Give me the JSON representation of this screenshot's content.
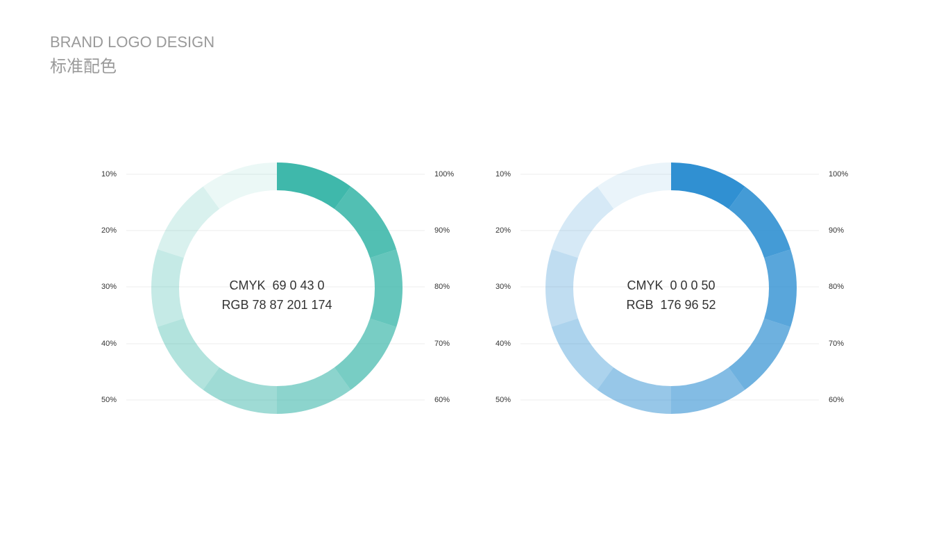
{
  "header": {
    "title": "BRAND LOGO DESIGN",
    "subtitle": "标准配色"
  },
  "swatches": [
    {
      "cmyk": "CMYK  69 0 43 0",
      "rgb": "RGB 78 87 201 174",
      "color": "#3fb8ab",
      "levels": [
        {
          "value": 100,
          "label": "100%"
        },
        {
          "value": 90,
          "label": "90%"
        },
        {
          "value": 80,
          "label": "80%"
        },
        {
          "value": 70,
          "label": "70%"
        },
        {
          "value": 60,
          "label": "60%"
        },
        {
          "value": 50,
          "label": "50%"
        },
        {
          "value": 40,
          "label": "40%"
        },
        {
          "value": 30,
          "label": "30%"
        },
        {
          "value": 20,
          "label": "20%"
        },
        {
          "value": 10,
          "label": "10%"
        }
      ]
    },
    {
      "cmyk": "CMYK  0 0 0 50",
      "rgb": "RGB  176 96 52",
      "color": "#3090d2",
      "levels": [
        {
          "value": 100,
          "label": "100%"
        },
        {
          "value": 90,
          "label": "90%"
        },
        {
          "value": 80,
          "label": "80%"
        },
        {
          "value": 70,
          "label": "70%"
        },
        {
          "value": 60,
          "label": "60%"
        },
        {
          "value": 50,
          "label": "50%"
        },
        {
          "value": 40,
          "label": "40%"
        },
        {
          "value": 30,
          "label": "30%"
        },
        {
          "value": 20,
          "label": "20%"
        },
        {
          "value": 10,
          "label": "10%"
        }
      ]
    }
  ]
}
